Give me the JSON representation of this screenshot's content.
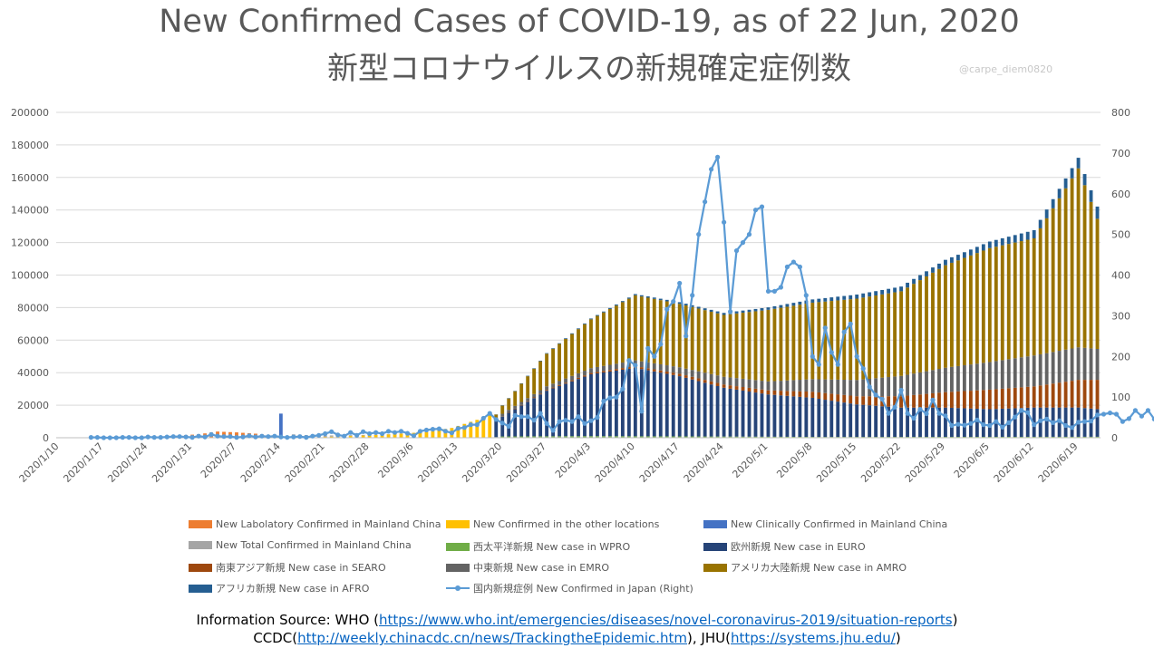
{
  "title": "New Confirmed Cases of COVID-19, as of 22 Jun, 2020",
  "subtitle": "新型コロナウイルスの新規確定症例数",
  "watermark": "@carpe_diem0820",
  "source": {
    "line1_prefix": "Information Source: WHO (",
    "line1_link": "https://www.who.int/emergencies/diseases/novel-coronavirus-2019/situation-reports",
    "line1_suffix": ")",
    "line2_prefix": "CCDC(",
    "line2_link1": "http://weekly.chinacdc.cn/news/TrackingtheEpidemic.htm",
    "line2_mid": "), JHU(",
    "line2_link2": "https://systems.jhu.edu/",
    "line2_suffix": ")"
  },
  "legend": [
    {
      "label": "New Labolatory Confirmed in Mainland China",
      "color": "#ed7d31",
      "kind": "bar"
    },
    {
      "label": "New Confirmed in the other locations",
      "color": "#ffc000",
      "kind": "bar"
    },
    {
      "label": "New Clinically Confirmed in Mainland China",
      "color": "#4472c4",
      "kind": "bar"
    },
    {
      "label": "New Total Confirmed in Mainland China",
      "color": "#a5a5a5",
      "kind": "bar"
    },
    {
      "label": "西太平洋新規 New case in WPRO",
      "color": "#70ad47",
      "kind": "bar"
    },
    {
      "label": "欧州新規 New case in EURO",
      "color": "#264478",
      "kind": "bar"
    },
    {
      "label": "南東アジア新規 New case in SEARO",
      "color": "#9e480e",
      "kind": "bar"
    },
    {
      "label": "中東新規 New case in EMRO",
      "color": "#636363",
      "kind": "bar"
    },
    {
      "label": "アメリカ大陸新規 New case in AMRO",
      "color": "#997300",
      "kind": "bar"
    },
    {
      "label": "アフリカ新規 New case in AFRO",
      "color": "#255e91",
      "kind": "bar"
    },
    {
      "label": "国内新規症例 New Confirmed in Japan (Right)",
      "color": "#5b9bd5",
      "kind": "line"
    }
  ],
  "chart_data": {
    "type": "bar",
    "stacked": true,
    "title": "New Confirmed Cases of COVID-19, as of 22 Jun, 2020",
    "x_tick_labels": [
      "2020/1/10",
      "2020/1/17",
      "2020/1/24",
      "2020/1/31",
      "2020/2/7",
      "2020/2/14",
      "2020/2/21",
      "2020/2/28",
      "2020/3/6",
      "2020/3/13",
      "2020/3/20",
      "2020/3/27",
      "2020/4/3",
      "2020/4/10",
      "2020/4/17",
      "2020/4/24",
      "2020/5/1",
      "2020/5/8",
      "2020/5/15",
      "2020/5/22",
      "2020/5/29",
      "2020/6/5",
      "2020/6/12",
      "2020/6/19"
    ],
    "date_start": "2020/1/10",
    "date_end": "2020/6/22",
    "y_left": {
      "min": 0,
      "max": 200000,
      "ticks": [
        "0",
        "20000",
        "40000",
        "60000",
        "80000",
        "100000",
        "120000",
        "140000",
        "160000",
        "180000",
        "200000"
      ]
    },
    "y_right": {
      "min": 0,
      "max": 800,
      "ticks": [
        "0",
        "100",
        "200",
        "300",
        "400",
        "500",
        "600",
        "700",
        "800"
      ]
    },
    "grid": true,
    "legend_position": "bottom",
    "bar_series": [
      {
        "name": "New Labolatory Confirmed in Mainland China",
        "color": "#ed7d31",
        "anchors": [
          [
            "2020/1/10",
            0
          ],
          [
            "2020/1/18",
            0
          ],
          [
            "2020/1/21",
            100
          ],
          [
            "2020/1/25",
            700
          ],
          [
            "2020/1/29",
            1500
          ],
          [
            "2020/2/1",
            2100
          ],
          [
            "2020/2/4",
            3800
          ],
          [
            "2020/2/7",
            3300
          ],
          [
            "2020/2/10",
            2500
          ],
          [
            "2020/2/16",
            0
          ]
        ]
      },
      {
        "name": "New Confirmed in the other locations",
        "color": "#ffc000",
        "anchors": [
          [
            "2020/1/10",
            0
          ],
          [
            "2020/2/15",
            0
          ],
          [
            "2020/2/20",
            400
          ],
          [
            "2020/2/28",
            1500
          ],
          [
            "2020/3/4",
            2500
          ],
          [
            "2020/3/8",
            3500
          ],
          [
            "2020/3/12",
            6000
          ],
          [
            "2020/3/16",
            11000
          ],
          [
            "2020/3/18",
            14000
          ],
          [
            "2020/3/19",
            0
          ]
        ]
      },
      {
        "name": "New Clinically Confirmed in Mainland China",
        "color": "#4472c4",
        "anchors": [
          [
            "2020/1/10",
            0
          ],
          [
            "2020/2/13",
            0
          ],
          [
            "2020/2/14",
            14000
          ],
          [
            "2020/2/15",
            0
          ]
        ]
      },
      {
        "name": "New Total Confirmed in Mainland China",
        "color": "#a5a5a5",
        "anchors": [
          [
            "2020/1/10",
            0
          ],
          [
            "2020/2/15",
            0
          ],
          [
            "2020/2/16",
            2000
          ],
          [
            "2020/2/20",
            900
          ],
          [
            "2020/2/25",
            500
          ],
          [
            "2020/3/1",
            200
          ],
          [
            "2020/3/6",
            100
          ],
          [
            "2020/3/18",
            0
          ]
        ]
      },
      {
        "name": "西太平洋新規 New case in WPRO",
        "color": "#70ad47",
        "anchors": [
          [
            "2020/1/10",
            0
          ],
          [
            "2020/3/18",
            0
          ],
          [
            "2020/3/20",
            800
          ],
          [
            "2020/4/3",
            1000
          ],
          [
            "2020/4/20",
            800
          ],
          [
            "2020/5/10",
            500
          ],
          [
            "2020/6/22",
            600
          ]
        ]
      },
      {
        "name": "欧州新規 New case in EURO",
        "color": "#264478",
        "anchors": [
          [
            "2020/1/10",
            0
          ],
          [
            "2020/3/18",
            0
          ],
          [
            "2020/3/19",
            10000
          ],
          [
            "2020/3/27",
            28000
          ],
          [
            "2020/4/3",
            38000
          ],
          [
            "2020/4/10",
            42000
          ],
          [
            "2020/4/17",
            37000
          ],
          [
            "2020/4/24",
            30000
          ],
          [
            "2020/5/1",
            26000
          ],
          [
            "2020/5/8",
            24000
          ],
          [
            "2020/5/15",
            20000
          ],
          [
            "2020/5/22",
            18000
          ],
          [
            "2020/5/29",
            18000
          ],
          [
            "2020/6/5",
            17000
          ],
          [
            "2020/6/12",
            18000
          ],
          [
            "2020/6/19",
            18000
          ],
          [
            "2020/6/22",
            17000
          ]
        ]
      },
      {
        "name": "南東アジア新規 New case in SEARO",
        "color": "#9e480e",
        "anchors": [
          [
            "2020/1/10",
            0
          ],
          [
            "2020/3/18",
            0
          ],
          [
            "2020/3/20",
            200
          ],
          [
            "2020/4/3",
            800
          ],
          [
            "2020/4/17",
            1500
          ],
          [
            "2020/5/1",
            2500
          ],
          [
            "2020/5/15",
            5000
          ],
          [
            "2020/5/22",
            7000
          ],
          [
            "2020/6/5",
            12000
          ],
          [
            "2020/6/12",
            13000
          ],
          [
            "2020/6/19",
            17000
          ],
          [
            "2020/6/22",
            18000
          ]
        ]
      },
      {
        "name": "中東新規 New case in EMRO",
        "color": "#636363",
        "anchors": [
          [
            "2020/1/10",
            0
          ],
          [
            "2020/3/18",
            0
          ],
          [
            "2020/3/20",
            1500
          ],
          [
            "2020/4/3",
            3000
          ],
          [
            "2020/4/17",
            4000
          ],
          [
            "2020/5/1",
            5500
          ],
          [
            "2020/5/15",
            10000
          ],
          [
            "2020/5/29",
            15000
          ],
          [
            "2020/6/12",
            19000
          ],
          [
            "2020/6/19",
            20000
          ],
          [
            "2020/6/22",
            19000
          ]
        ]
      },
      {
        "name": "アメリカ大陸新規 New case in AMRO",
        "color": "#997300",
        "anchors": [
          [
            "2020/1/10",
            0
          ],
          [
            "2020/3/18",
            0
          ],
          [
            "2020/3/19",
            3000
          ],
          [
            "2020/3/22",
            9000
          ],
          [
            "2020/3/27",
            20000
          ],
          [
            "2020/4/3",
            30000
          ],
          [
            "2020/4/10",
            40000
          ],
          [
            "2020/4/17",
            39000
          ],
          [
            "2020/4/24",
            38000
          ],
          [
            "2020/5/1",
            44000
          ],
          [
            "2020/5/8",
            47000
          ],
          [
            "2020/5/15",
            50000
          ],
          [
            "2020/5/22",
            52000
          ],
          [
            "2020/5/29",
            63000
          ],
          [
            "2020/6/5",
            70000
          ],
          [
            "2020/6/12",
            72000
          ],
          [
            "2020/6/19",
            110000
          ],
          [
            "2020/6/22",
            80000
          ]
        ]
      },
      {
        "name": "アフリカ新規 New case in AFRO",
        "color": "#255e91",
        "anchors": [
          [
            "2020/1/10",
            0
          ],
          [
            "2020/3/18",
            0
          ],
          [
            "2020/3/20",
            200
          ],
          [
            "2020/4/3",
            500
          ],
          [
            "2020/4/17",
            1000
          ],
          [
            "2020/5/1",
            1500
          ],
          [
            "2020/5/15",
            2500
          ],
          [
            "2020/6/1",
            3500
          ],
          [
            "2020/6/12",
            5000
          ],
          [
            "2020/6/19",
            6500
          ],
          [
            "2020/6/22",
            7500
          ]
        ]
      }
    ],
    "line_series": {
      "name": "国内新規症例 New Confirmed in Japan (Right)",
      "color": "#5b9bd5",
      "axis": "right",
      "start": "2020/1/15",
      "values": [
        1,
        1,
        0,
        0,
        0,
        1,
        1,
        0,
        0,
        2,
        1,
        1,
        2,
        3,
        3,
        2,
        1,
        4,
        2,
        8,
        4,
        3,
        3,
        1,
        2,
        5,
        2,
        4,
        3,
        4,
        2,
        1,
        2,
        3,
        1,
        4,
        6,
        10,
        15,
        7,
        4,
        13,
        6,
        15,
        10,
        13,
        10,
        16,
        13,
        16,
        11,
        5,
        16,
        19,
        21,
        22,
        16,
        12,
        23,
        25,
        32,
        32,
        48,
        60,
        45,
        36,
        28,
        55,
        52,
        52,
        43,
        60,
        35,
        18,
        40,
        43,
        40,
        52,
        35,
        42,
        50,
        90,
        98,
        100,
        120,
        190,
        178,
        65,
        220,
        200,
        230,
        316,
        335,
        380,
        250,
        350,
        500,
        580,
        660,
        690,
        530,
        310,
        460,
        480,
        500,
        560,
        568,
        360,
        360,
        370,
        420,
        432,
        420,
        350,
        200,
        180,
        270,
        210,
        180,
        260,
        280,
        200,
        170,
        125,
        105,
        95,
        60,
        75,
        117,
        60,
        48,
        70,
        59,
        93,
        60,
        54,
        30,
        33,
        31,
        35,
        44,
        32,
        30,
        40,
        26,
        37,
        51,
        67,
        62,
        32,
        42,
        46,
        37,
        42,
        30,
        25,
        38,
        40,
        41,
        56,
        58,
        61,
        58,
        40,
        47,
        67,
        53,
        67,
        46
      ]
    }
  }
}
